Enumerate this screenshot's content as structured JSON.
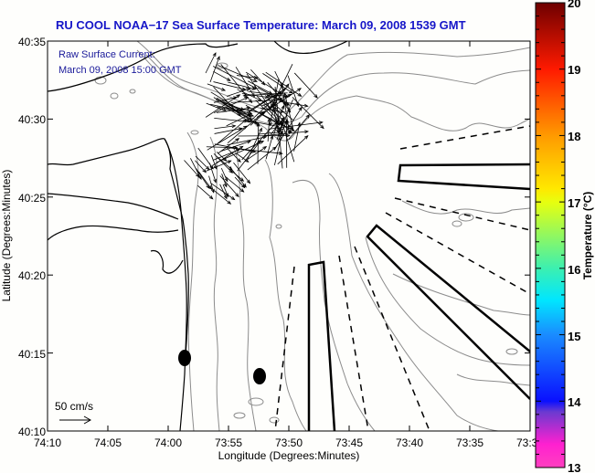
{
  "title": "RU COOL  NOAA−17  Sea Surface Temperature:  March 09, 2008 1539 GMT",
  "legend": {
    "line1": "Raw Surface Current:",
    "line2": "March 09, 2008 15:00 GMT",
    "scale_label": "50 cm/s"
  },
  "axes": {
    "xlabel": "Longitude (Degrees:Minutes)",
    "ylabel": "Latitude (Degrees:Minutes)",
    "x_ticks": [
      "74:10",
      "74:05",
      "74:00",
      "73:55",
      "73:50",
      "73:45",
      "73:40",
      "73:35",
      "73:3"
    ],
    "y_ticks": [
      "40:35",
      "40:30",
      "40:25",
      "40:20",
      "40:15",
      "40:10"
    ]
  },
  "colorbar": {
    "title": "Temperature (°C)",
    "ticks": [
      "20",
      "19",
      "18",
      "17",
      "16",
      "15",
      "14",
      "13"
    ],
    "min": 13,
    "max": 20,
    "colors": {
      "c20": "#6e0000",
      "c19": "#ff1a00",
      "c18": "#ff9a00",
      "c17": "#e6ff10",
      "c16": "#3cf0b0",
      "c155": "#00e6ff",
      "c15": "#1a8cff",
      "c14": "#0a10ff",
      "c138": "#6a3ad0",
      "c13": "#ff40c0"
    }
  },
  "colors": {
    "title": "#1616c8",
    "legend_text": "#1a1a9a",
    "coast": "#000000",
    "bathy": "#8c8c8c"
  },
  "chart_data": {
    "type": "map",
    "title": "RU COOL  NOAA-17  Sea Surface Temperature:  March 09, 2008 1539 GMT",
    "xlabel": "Longitude (Degrees:Minutes)",
    "ylabel": "Latitude (Degrees:Minutes)",
    "xlim": [
      "74:10",
      "73:30"
    ],
    "ylim": [
      "40:10",
      "40:35"
    ],
    "colorbar_range": [
      13,
      20
    ],
    "colorbar_label": "Temperature (°C)",
    "vector_scale": "50 cm/s",
    "features": [
      "surface current vectors",
      "coastline",
      "bathymetry contours",
      "survey tracks (solid and dashed)",
      "two moorings"
    ]
  }
}
